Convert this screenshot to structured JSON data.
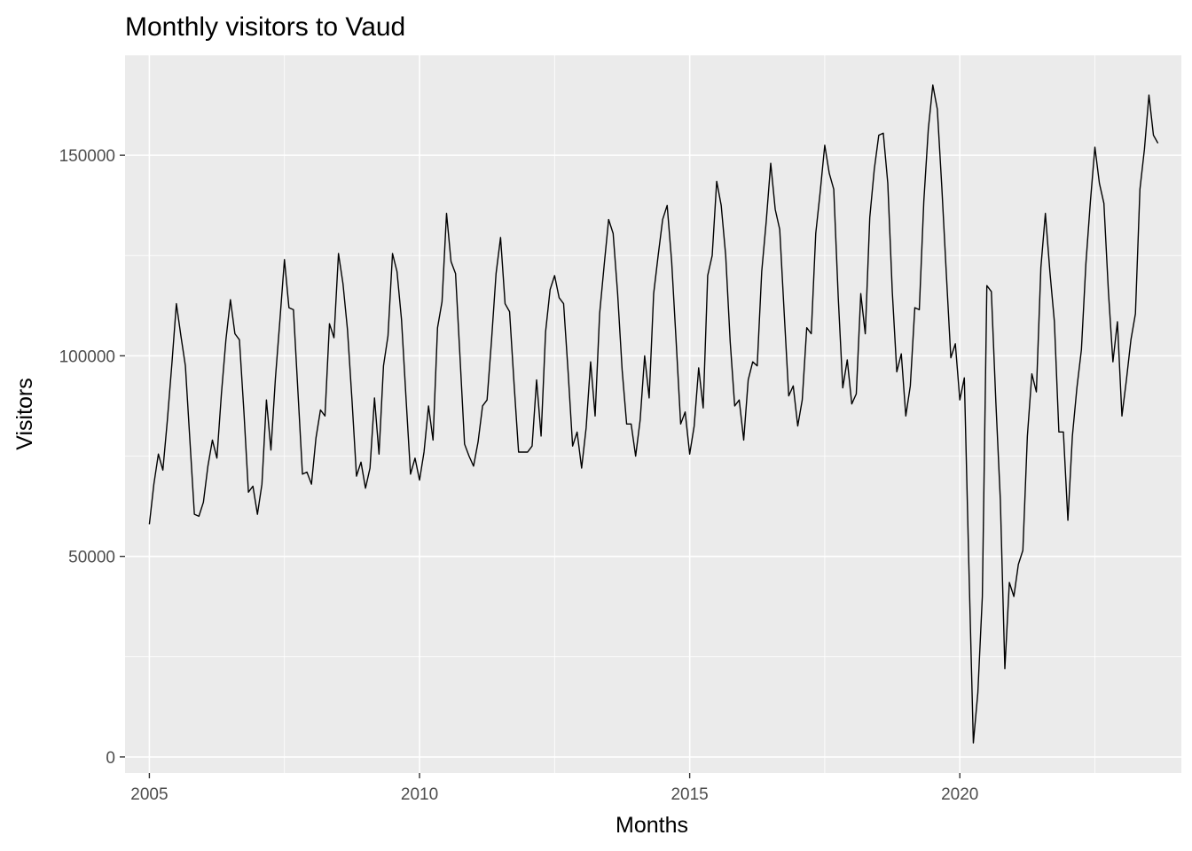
{
  "chart_data": {
    "type": "line",
    "title": "Monthly visitors to Vaud",
    "xlabel": "Months",
    "ylabel": "Visitors",
    "xlim": [
      2004.55,
      2024.1
    ],
    "ylim": [
      -4000,
      175000
    ],
    "x_ticks": [
      2005,
      2010,
      2015,
      2020
    ],
    "y_ticks": [
      0,
      50000,
      100000,
      150000
    ],
    "x_tick_labels": [
      "2005",
      "2010",
      "2015",
      "2020"
    ],
    "y_tick_labels": [
      "0",
      "50000",
      "100000",
      "150000"
    ],
    "grid": true,
    "panel_background": "#ebebeb",
    "grid_color": "#ffffff",
    "line_color": "#000000",
    "series": [
      {
        "x_start": 2005,
        "step": 0.08333333,
        "values": [
          58000,
          68000,
          75500,
          71500,
          84000,
          98000,
          113000,
          105000,
          97500,
          79000,
          60500,
          60000,
          63500,
          72500,
          79000,
          74500,
          90500,
          104000,
          114000,
          105500,
          104000,
          86000,
          66000,
          67500,
          60500,
          68000,
          89000,
          76500,
          94500,
          109000,
          124000,
          112000,
          111500,
          91000,
          70500,
          71000,
          68000,
          79500,
          86500,
          85000,
          108000,
          104500,
          125500,
          118000,
          106500,
          89000,
          70000,
          73500,
          67000,
          72000,
          89500,
          75500,
          97500,
          105000,
          125500,
          121000,
          109000,
          89500,
          70500,
          74500,
          69000,
          76000,
          87500,
          79000,
          107000,
          113500,
          135500,
          123500,
          120500,
          99500,
          78000,
          75000,
          72500,
          78500,
          87500,
          89000,
          104000,
          120500,
          129500,
          113000,
          111000,
          93000,
          76000,
          76000,
          76000,
          77500,
          94000,
          80000,
          106000,
          116500,
          120000,
          114500,
          113000,
          96000,
          77500,
          81000,
          72000,
          82000,
          98500,
          85000,
          110500,
          122500,
          134000,
          130500,
          115500,
          96500,
          83000,
          83000,
          75000,
          84000,
          100000,
          89500,
          115500,
          125000,
          134000,
          137500,
          123500,
          103500,
          83000,
          86000,
          75500,
          82500,
          97000,
          87000,
          120000,
          125000,
          143500,
          137500,
          125000,
          103500,
          87500,
          89000,
          79000,
          94000,
          98500,
          97500,
          121000,
          133500,
          148000,
          136500,
          131500,
          110500,
          90000,
          92500,
          82500,
          89000,
          107000,
          105500,
          130500,
          141000,
          152500,
          145500,
          141500,
          114500,
          92000,
          99000,
          88000,
          90500,
          115500,
          105500,
          134500,
          146500,
          155000,
          155500,
          143000,
          116000,
          96000,
          100500,
          85000,
          92500,
          112000,
          111500,
          138500,
          156500,
          167500,
          161500,
          142000,
          120500,
          99500,
          103000,
          89000,
          94500,
          48000,
          3500,
          16000,
          40000,
          117500,
          116000,
          88500,
          64000,
          22000,
          43500,
          40000,
          48000,
          51500,
          80000,
          95500,
          91000,
          122000,
          135500,
          121000,
          108500,
          81000,
          81000,
          59000,
          80000,
          92000,
          101500,
          123000,
          138500,
          152000,
          143000,
          138000,
          116000,
          98500,
          108500,
          85000,
          94000,
          104000,
          110500,
          141500,
          151500,
          165000,
          155000,
          153000
        ]
      }
    ]
  }
}
